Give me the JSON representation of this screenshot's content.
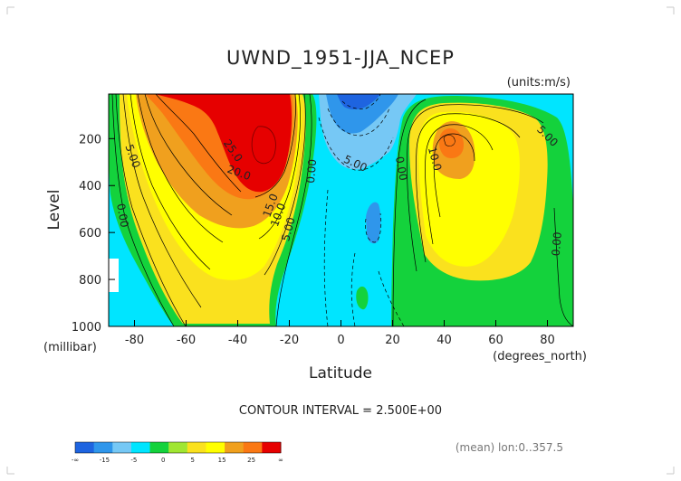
{
  "chart_data": {
    "type": "heatmap",
    "title": "UWND_1951-JJA_NCEP",
    "units_label": "(units:m/s)",
    "xlabel": "Latitude",
    "x_units_label": "(degrees_north)",
    "ylabel": "Level",
    "y_units_label": "(millibar)",
    "xlim": [
      -90,
      90
    ],
    "ylim": [
      1000,
      10
    ],
    "y_inverted": true,
    "x_ticks": [
      -80,
      -60,
      -40,
      -20,
      0,
      20,
      40,
      60,
      80
    ],
    "y_ticks": [
      200,
      400,
      600,
      800,
      1000
    ],
    "contour_interval_text": "CONTOUR INTERVAL = 2.500E+00",
    "mean_note": "(mean) lon:0..357.5",
    "contour_labels": [
      {
        "text": "5.00",
        "lat": -82,
        "level": 280,
        "rotate": 70
      },
      {
        "text": "0.00",
        "lat": -86,
        "level": 530,
        "rotate": 80
      },
      {
        "text": "25.0",
        "lat": -43,
        "level": 260,
        "rotate": 55
      },
      {
        "text": "20.0",
        "lat": -40,
        "level": 360,
        "rotate": 20
      },
      {
        "text": "15.0",
        "lat": -26,
        "level": 490,
        "rotate": -70
      },
      {
        "text": "10.0",
        "lat": -23,
        "level": 530,
        "rotate": -70
      },
      {
        "text": "5.00",
        "lat": -19,
        "level": 590,
        "rotate": -75
      },
      {
        "text": "0.00",
        "lat": -10,
        "level": 340,
        "rotate": -85
      },
      {
        "text": "5.00",
        "lat": 5,
        "level": 320,
        "rotate": 25
      },
      {
        "text": "0.00",
        "lat": 22,
        "level": 330,
        "rotate": 80
      },
      {
        "text": "10.0",
        "lat": 35,
        "level": 290,
        "rotate": 75
      },
      {
        "text": "5.00",
        "lat": 79,
        "level": 200,
        "rotate": 45
      },
      {
        "text": "0.00",
        "lat": 85,
        "level": 650,
        "rotate": -85
      }
    ],
    "colorbar": {
      "colors": [
        "#1e64e0",
        "#2f96eb",
        "#76c8f5",
        "#00e5ff",
        "#14d23c",
        "#a0e632",
        "#fae11e",
        "#ffff00",
        "#f0a01e",
        "#fa7814",
        "#e60000"
      ],
      "labels": [
        "-∞",
        "-15",
        "-5",
        "0",
        "5",
        "15",
        "25",
        "∞"
      ]
    }
  }
}
